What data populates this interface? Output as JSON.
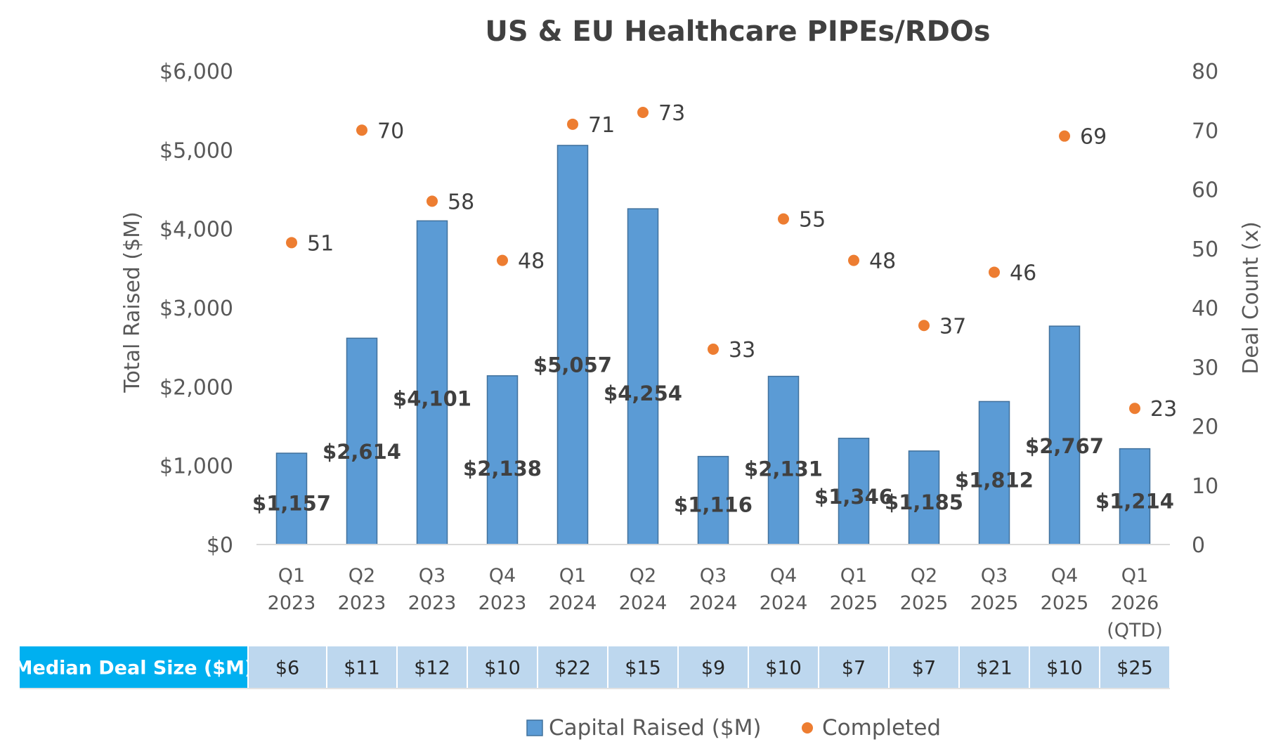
{
  "chart_data": {
    "type": "bar",
    "title": "US & EU Healthcare PIPEs/RDOs",
    "ylabel": "Total Raised ($M)",
    "y2label": "Deal Count (x)",
    "ylim": [
      0,
      6000
    ],
    "y2lim": [
      0,
      80
    ],
    "yticks": [
      "$0",
      "$1,000",
      "$2,000",
      "$3,000",
      "$4,000",
      "$5,000",
      "$6,000"
    ],
    "y2ticks": [
      "0",
      "10",
      "20",
      "30",
      "40",
      "50",
      "60",
      "70",
      "80"
    ],
    "categories": [
      [
        "Q1",
        "2023"
      ],
      [
        "Q2",
        "2023"
      ],
      [
        "Q3",
        "2023"
      ],
      [
        "Q4",
        "2023"
      ],
      [
        "Q1",
        "2024"
      ],
      [
        "Q2",
        "2024"
      ],
      [
        "Q3",
        "2024"
      ],
      [
        "Q4",
        "2024"
      ],
      [
        "Q1",
        "2025"
      ],
      [
        "Q2",
        "2025"
      ],
      [
        "Q3",
        "2025"
      ],
      [
        "Q4",
        "2025"
      ],
      [
        "Q1",
        "2026",
        "(QTD)"
      ]
    ],
    "series": [
      {
        "name": "Capital Raised ($M)",
        "type": "bar",
        "axis": "left",
        "color": "#5B9BD5",
        "values": [
          1157,
          2614,
          4101,
          2138,
          5057,
          4254,
          1116,
          2131,
          1346,
          1185,
          1812,
          2767,
          1214
        ],
        "labels": [
          "$1,157",
          "$2,614",
          "$4,101",
          "$2,138",
          "$5,057",
          "$4,254",
          "$1,116",
          "$2,131",
          "$1,346",
          "$1,185",
          "$1,812",
          "$2,767",
          "$1,214"
        ]
      },
      {
        "name": "Completed",
        "type": "scatter",
        "axis": "right",
        "color": "#ED7D31",
        "values": [
          51,
          70,
          58,
          48,
          71,
          73,
          33,
          55,
          48,
          37,
          46,
          69,
          23
        ],
        "labels": [
          "51",
          "70",
          "58",
          "48",
          "71",
          "73",
          "33",
          "55",
          "48",
          "37",
          "46",
          "69",
          "23"
        ]
      }
    ],
    "legend_position": "bottom",
    "table": {
      "header": "Median Deal Size ($M)",
      "values": [
        "$6",
        "$11",
        "$12",
        "$10",
        "$22",
        "$15",
        "$9",
        "$10",
        "$7",
        "$7",
        "$21",
        "$10",
        "$25"
      ],
      "header_color": "#00B0F0",
      "cell_color": "#BDD7EE"
    }
  }
}
